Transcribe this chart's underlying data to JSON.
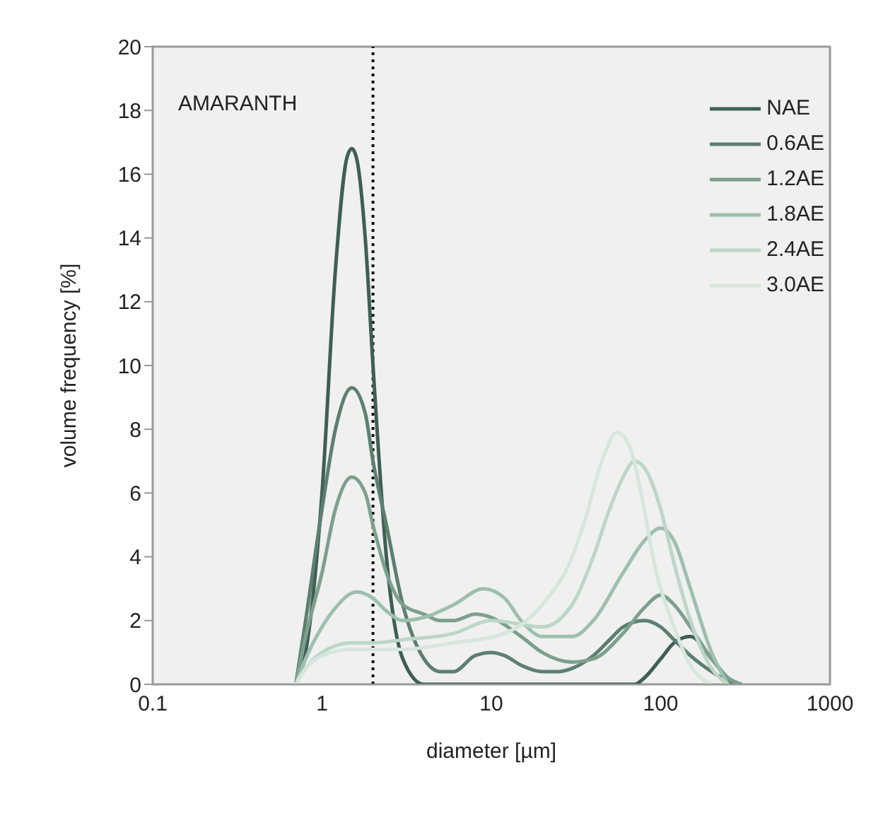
{
  "chart_data": {
    "type": "line",
    "xlabel": "diameter [µm]",
    "ylabel": "volume frequency [%]",
    "log": "x",
    "xlim": [
      0.1,
      1000
    ],
    "xticks": [
      0.1,
      1,
      10,
      100,
      1000
    ],
    "ylim": [
      0,
      20
    ],
    "yticks": [
      0,
      2,
      4,
      6,
      8,
      10,
      12,
      14,
      16,
      18,
      20
    ],
    "legend": "top right",
    "marker": "none",
    "line_style": "solid",
    "annotations": [
      "AMARANTH"
    ],
    "ref_lines": [
      {
        "axis": "x",
        "value": 2,
        "color": "#111111",
        "line_style": "dotted"
      }
    ],
    "series": [
      {
        "name": "NAE",
        "color": "#3f5f55",
        "x": [
          0.7,
          0.8,
          1,
          1.2,
          1.4,
          1.5,
          1.6,
          1.8,
          2,
          2.4,
          3,
          4,
          10,
          30,
          70,
          80,
          100,
          120,
          150,
          200,
          250,
          300
        ],
        "values": [
          0,
          1,
          6,
          13,
          16.5,
          16.8,
          16.5,
          14,
          10,
          4,
          0.8,
          0,
          0,
          0,
          0,
          0.2,
          0.8,
          1.3,
          1.5,
          0.8,
          0.2,
          0
        ]
      },
      {
        "name": "0.6AE",
        "color": "#5c7f70",
        "x": [
          0.7,
          0.8,
          1,
          1.2,
          1.5,
          1.8,
          2,
          2.4,
          3,
          4,
          5,
          6,
          8,
          10,
          12,
          15,
          20,
          25,
          30,
          40,
          50,
          60,
          80,
          100,
          120,
          150,
          200,
          250,
          300
        ],
        "values": [
          0,
          2,
          5.5,
          8,
          9.3,
          8.5,
          7,
          5,
          2.5,
          0.8,
          0.4,
          0.4,
          0.9,
          1,
          0.9,
          0.6,
          0.4,
          0.4,
          0.5,
          0.9,
          1.4,
          1.8,
          2,
          1.8,
          1.4,
          0.9,
          0.4,
          0.1,
          0
        ]
      },
      {
        "name": "1.2AE",
        "color": "#7da08e",
        "x": [
          0.7,
          0.8,
          1,
          1.2,
          1.5,
          1.8,
          2,
          2.4,
          3,
          4,
          5,
          6,
          8,
          10,
          15,
          20,
          30,
          40,
          60,
          80,
          100,
          120,
          150,
          200,
          250,
          300
        ],
        "values": [
          0,
          1.5,
          3.5,
          5.5,
          6.5,
          6,
          5,
          3.5,
          2.5,
          2.2,
          2,
          2,
          2.2,
          2.1,
          1.5,
          1,
          0.7,
          0.8,
          1.6,
          2.4,
          2.8,
          2.5,
          1.8,
          0.8,
          0.2,
          0
        ]
      },
      {
        "name": "1.8AE",
        "color": "#9dbfae",
        "x": [
          0.7,
          0.8,
          1,
          1.2,
          1.6,
          2,
          2.4,
          3,
          4,
          6,
          9,
          12,
          15,
          20,
          30,
          40,
          60,
          80,
          100,
          120,
          150,
          200,
          250
        ],
        "values": [
          0,
          0.8,
          1.8,
          2.4,
          2.9,
          2.7,
          2.3,
          2,
          2.1,
          2.5,
          3,
          2.7,
          2,
          1.5,
          1.5,
          2,
          3.5,
          4.5,
          4.9,
          4.5,
          3,
          1,
          0
        ]
      },
      {
        "name": "2.4AE",
        "color": "#bcd6c8",
        "x": [
          0.7,
          0.8,
          1,
          1.5,
          2,
          3,
          6,
          10,
          20,
          30,
          40,
          50,
          60,
          70,
          80,
          100,
          120,
          150,
          200,
          250
        ],
        "values": [
          0,
          0.5,
          1,
          1.3,
          1.3,
          1.4,
          1.6,
          2,
          1.8,
          2.5,
          4,
          5.5,
          6.5,
          7,
          6.8,
          5.5,
          3.8,
          2,
          0.5,
          0
        ]
      },
      {
        "name": "3.0AE",
        "color": "#d6e6dc",
        "x": [
          0.7,
          0.8,
          1,
          1.5,
          3,
          6,
          12,
          20,
          30,
          35,
          45,
          55,
          65,
          80,
          90,
          120,
          150,
          200
        ],
        "values": [
          0,
          0.5,
          0.9,
          1.1,
          1.1,
          1.3,
          1.6,
          2.5,
          4,
          5,
          7,
          7.9,
          7.5,
          5.5,
          4,
          1.8,
          0.6,
          0
        ]
      }
    ]
  }
}
